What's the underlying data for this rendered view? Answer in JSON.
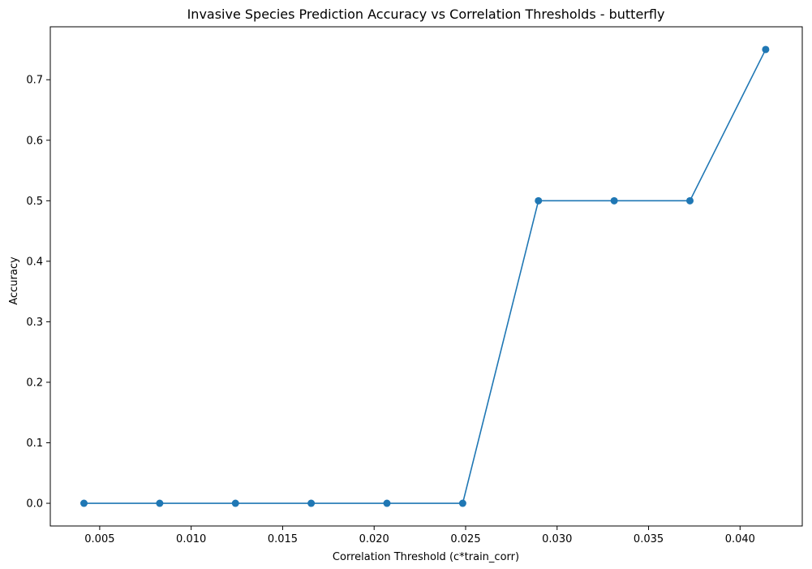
{
  "chart_data": {
    "type": "line",
    "title": "Invasive Species Prediction Accuracy vs Correlation Thresholds - butterfly",
    "xlabel": "Correlation Threshold (c*train_corr)",
    "ylabel": "Accuracy",
    "xlim": [
      0.0023,
      0.0434
    ],
    "ylim": [
      -0.0375,
      0.7875
    ],
    "xticks": [
      {
        "value": 0.005,
        "label": "0.005"
      },
      {
        "value": 0.01,
        "label": "0.010"
      },
      {
        "value": 0.015,
        "label": "0.015"
      },
      {
        "value": 0.02,
        "label": "0.020"
      },
      {
        "value": 0.025,
        "label": "0.025"
      },
      {
        "value": 0.03,
        "label": "0.030"
      },
      {
        "value": 0.035,
        "label": "0.035"
      },
      {
        "value": 0.04,
        "label": "0.040"
      }
    ],
    "yticks": [
      {
        "value": 0.0,
        "label": "0.0"
      },
      {
        "value": 0.1,
        "label": "0.1"
      },
      {
        "value": 0.2,
        "label": "0.2"
      },
      {
        "value": 0.3,
        "label": "0.3"
      },
      {
        "value": 0.4,
        "label": "0.4"
      },
      {
        "value": 0.5,
        "label": "0.5"
      },
      {
        "value": 0.6,
        "label": "0.6"
      },
      {
        "value": 0.7,
        "label": "0.7"
      }
    ],
    "grid": false,
    "series": [
      {
        "color": "#1f77b4",
        "marker": "circle",
        "x": [
          0.00414,
          0.00828,
          0.01242,
          0.01656,
          0.0207,
          0.02484,
          0.02898,
          0.03312,
          0.03726,
          0.0414
        ],
        "y": [
          0.0,
          0.0,
          0.0,
          0.0,
          0.0,
          0.0,
          0.5,
          0.5,
          0.5,
          0.75
        ]
      }
    ]
  }
}
